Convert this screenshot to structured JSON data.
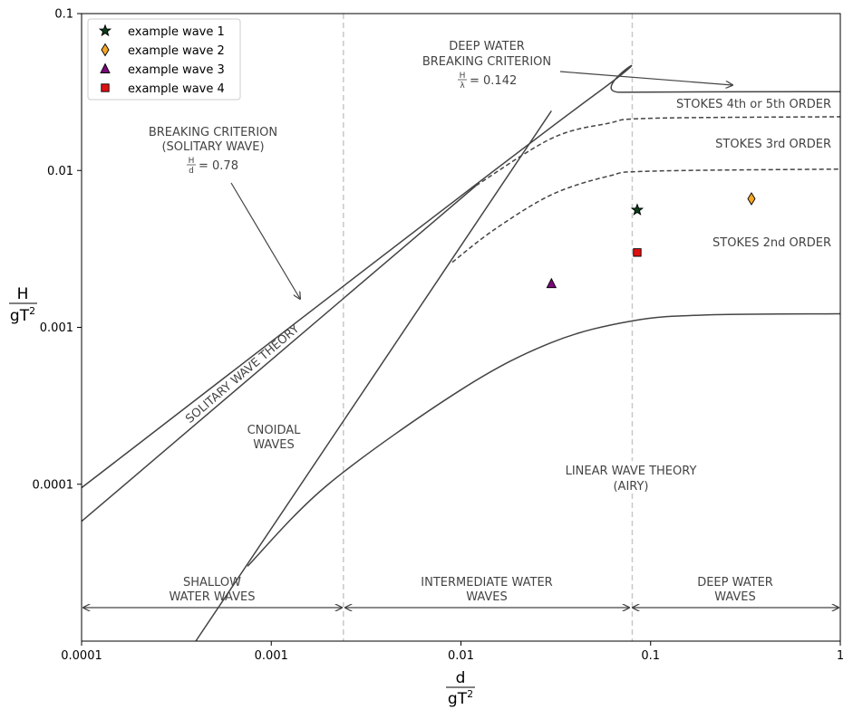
{
  "chart_data": {
    "type": "scatter",
    "title": "",
    "x_axis": {
      "label_num": "d",
      "label_den": "gT",
      "label_den_exp": "2",
      "scale": "log",
      "range": [
        0.0001,
        1
      ],
      "ticks": [
        {
          "value": 0.0001,
          "label": "0.0001"
        },
        {
          "value": 0.001,
          "label": "0.001"
        },
        {
          "value": 0.01,
          "label": "0.01"
        },
        {
          "value": 0.1,
          "label": "0.1"
        },
        {
          "value": 1,
          "label": "1"
        }
      ]
    },
    "y_axis": {
      "label_num": "H",
      "label_den": "gT",
      "label_den_exp": "2",
      "scale": "log",
      "range": [
        1e-05,
        0.1
      ],
      "ticks": [
        {
          "value": 0.0001,
          "label": "0.0001"
        },
        {
          "value": 0.001,
          "label": "0.001"
        },
        {
          "value": 0.01,
          "label": "0.01"
        },
        {
          "value": 0.1,
          "label": "0.1"
        }
      ]
    },
    "grid": false,
    "legend_position": "top-left",
    "series": [
      {
        "name": "example wave 1",
        "marker": "star",
        "color": "#0a3d1a",
        "points": [
          [
            0.085,
            0.0056
          ]
        ]
      },
      {
        "name": "example wave 2",
        "marker": "diamond",
        "color": "#f5a623",
        "points": [
          [
            0.34,
            0.0066
          ]
        ]
      },
      {
        "name": "example wave 3",
        "marker": "triangle",
        "color": "#7a0a7a",
        "points": [
          [
            0.03,
            0.0019
          ]
        ]
      },
      {
        "name": "example wave 4",
        "marker": "square",
        "color": "#e01010",
        "points": [
          [
            0.085,
            0.003
          ]
        ]
      }
    ],
    "boundary_lines": [
      {
        "id": "breaking-solitary",
        "style": "solid",
        "points": [
          [
            0.0001,
            9.5e-05
          ],
          [
            0.05,
            0.03
          ],
          [
            0.07,
            0.0315
          ],
          [
            1,
            0.0318
          ]
        ]
      },
      {
        "id": "solitary-lower",
        "style": "solid",
        "points": [
          [
            0.0001,
            5.8e-05
          ],
          [
            0.012,
            0.008
          ]
        ]
      },
      {
        "id": "stokes-3rd",
        "style": "dashed",
        "points": [
          [
            0.012,
            0.008
          ],
          [
            0.03,
            0.016
          ],
          [
            0.06,
            0.02
          ],
          [
            0.1,
            0.0215
          ],
          [
            1,
            0.022
          ]
        ]
      },
      {
        "id": "stokes-2nd",
        "style": "dashed",
        "points": [
          [
            0.009,
            0.0026
          ],
          [
            0.015,
            0.0042
          ],
          [
            0.03,
            0.007
          ],
          [
            0.06,
            0.0092
          ],
          [
            0.1,
            0.0099
          ],
          [
            1,
            0.0102
          ]
        ]
      },
      {
        "id": "ursell",
        "style": "solid",
        "points": [
          [
            0.0004,
            1e-05
          ],
          [
            0.03,
            0.024
          ]
        ]
      },
      {
        "id": "linear-limit",
        "style": "solid",
        "points": [
          [
            0.00075,
            3e-05
          ],
          [
            0.002,
            0.0001
          ],
          [
            0.01,
            0.0004
          ],
          [
            0.03,
            0.0008
          ],
          [
            0.08,
            0.0011
          ],
          [
            0.2,
            0.0012
          ],
          [
            1,
            0.00122
          ]
        ]
      }
    ],
    "vertical_lines": [
      0.0024,
      0.08
    ],
    "annotations": {
      "deep_water_breaking": {
        "line1": "DEEP WATER",
        "line2": "BREAKING CRITERION",
        "ratio_num": "H",
        "ratio_den": "λ",
        "ratio_value": "= 0.142"
      },
      "solitary_breaking": {
        "line1": "BREAKING CRITERION",
        "line2": "(SOLITARY WAVE)",
        "ratio_num": "H",
        "ratio_den": "d",
        "ratio_value": "= 0.78"
      },
      "stokes_45": "STOKES 4th or 5th ORDER",
      "stokes_3": "STOKES 3rd ORDER",
      "stokes_2": "STOKES 2nd ORDER",
      "solitary_theory": "SOLITARY WAVE THEORY",
      "cnoidal_line1": "CNOIDAL",
      "cnoidal_line2": "WAVES",
      "linear_line1": "LINEAR WAVE THEORY",
      "linear_line2": "(AIRY)",
      "shallow_line1": "SHALLOW",
      "shallow_line2": "WATER WAVES",
      "intermediate_line1": "INTERMEDIATE WATER",
      "intermediate_line2": "WAVES",
      "deep_line1": "DEEP WATER",
      "deep_line2": "WAVES"
    }
  }
}
